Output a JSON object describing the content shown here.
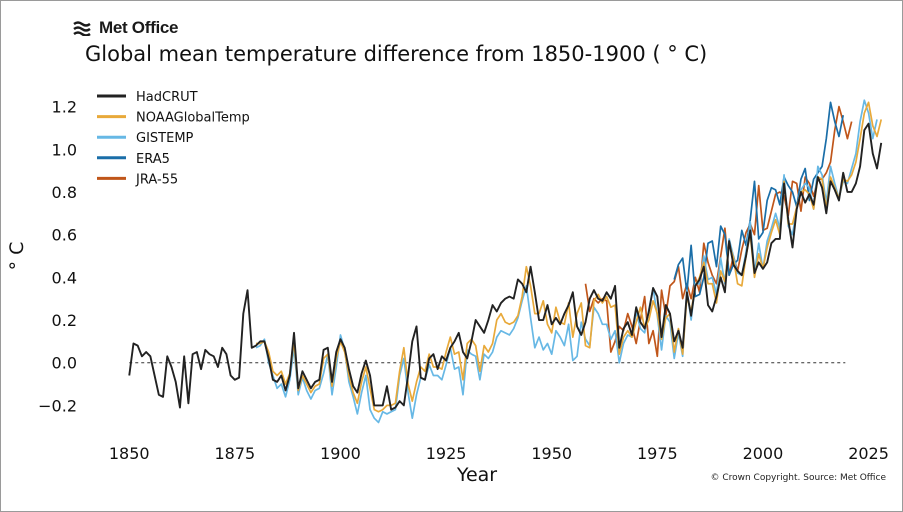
{
  "logo": {
    "text": "Met Office",
    "icon": "met-office-wave-icon"
  },
  "credit": "© Crown Copyright. Source: Met Office",
  "chart_data": {
    "type": "line",
    "title": "Global mean temperature difference from 1850-1900 ( ° C)",
    "xlabel": "Year",
    "ylabel": "° C",
    "xlim": [
      1840,
      2027
    ],
    "ylim": [
      -0.32,
      1.32
    ],
    "xticks": [
      1850,
      1875,
      1900,
      1925,
      1950,
      1975,
      2000,
      2025
    ],
    "xtick_labels": [
      "1850",
      "1875",
      "1900",
      "1925",
      "1950",
      "1975",
      "2000",
      "2025"
    ],
    "yticks": [
      -0.2,
      0.0,
      0.2,
      0.4,
      0.6,
      0.8,
      1.0,
      1.2
    ],
    "ytick_labels": [
      "−0.2",
      "0.0",
      "0.2",
      "0.4",
      "0.6",
      "0.8",
      "1.0",
      "1.2"
    ],
    "reference_line": {
      "y": 0.0,
      "style": "dashed",
      "color": "#333333"
    },
    "grid": false,
    "legend_position": "top-left",
    "series": [
      {
        "name": "HadCRUT",
        "color": "#222222",
        "start_year": 1850,
        "values": [
          -0.06,
          0.09,
          0.08,
          0.03,
          0.05,
          0.03,
          -0.06,
          -0.15,
          -0.16,
          0.03,
          -0.02,
          -0.09,
          -0.21,
          0.03,
          -0.19,
          0.04,
          0.05,
          -0.03,
          0.06,
          0.04,
          0.03,
          -0.02,
          0.07,
          0.04,
          -0.06,
          -0.08,
          -0.07,
          0.23,
          0.34,
          0.07,
          0.08,
          0.1,
          0.1,
          0.02,
          -0.08,
          -0.09,
          -0.06,
          -0.13,
          -0.06,
          0.14,
          -0.12,
          -0.04,
          -0.08,
          -0.12,
          -0.09,
          -0.08,
          0.06,
          0.07,
          -0.09,
          0.05,
          0.11,
          0.07,
          -0.03,
          -0.11,
          -0.14,
          -0.05,
          0.01,
          -0.06,
          -0.2,
          -0.2,
          -0.2,
          -0.11,
          -0.22,
          -0.21,
          -0.18,
          -0.2,
          -0.06,
          0.1,
          0.17,
          -0.07,
          -0.08,
          0.02,
          0.04,
          -0.03,
          0.03,
          0.01,
          0.07,
          0.1,
          0.14,
          0.05,
          0.02,
          0.1,
          0.2,
          0.17,
          0.14,
          0.2,
          0.27,
          0.24,
          0.28,
          0.3,
          0.31,
          0.3,
          0.39,
          0.37,
          0.33,
          0.45,
          0.33,
          0.2,
          0.2,
          0.27,
          0.18,
          0.21,
          0.18,
          0.23,
          0.27,
          0.33,
          0.17,
          0.13,
          0.19,
          0.3,
          0.34,
          0.3,
          0.29,
          0.33,
          0.3,
          0.36,
          0.07,
          0.16,
          0.19,
          0.13,
          0.26,
          0.19,
          0.16,
          0.24,
          0.35,
          0.31,
          0.12,
          0.27,
          0.23,
          0.1,
          0.15,
          0.07,
          0.33,
          0.22,
          0.36,
          0.39,
          0.45,
          0.27,
          0.24,
          0.31,
          0.4,
          0.33,
          0.57,
          0.46,
          0.43,
          0.41,
          0.5,
          0.62,
          0.42,
          0.47,
          0.44,
          0.47,
          0.56,
          0.58,
          0.58,
          0.84,
          0.67,
          0.54,
          0.72,
          0.8,
          0.75,
          0.79,
          0.74,
          0.87,
          0.82,
          0.7,
          0.85,
          0.81,
          0.76,
          0.89,
          0.8,
          0.8,
          0.84,
          0.92,
          1.09,
          1.12,
          0.98,
          0.91,
          1.03
        ]
      },
      {
        "name": "NOAAGlobalTemp",
        "color": "#e8a93a",
        "start_year": 1880,
        "values": [
          0.09,
          0.09,
          0.1,
          0.05,
          -0.04,
          -0.06,
          -0.04,
          -0.1,
          -0.05,
          0.1,
          -0.13,
          -0.06,
          -0.1,
          -0.14,
          -0.11,
          -0.1,
          0.02,
          0.04,
          -0.11,
          0.02,
          0.1,
          0.05,
          -0.06,
          -0.14,
          -0.19,
          -0.09,
          -0.02,
          -0.12,
          -0.22,
          -0.23,
          -0.22,
          -0.2,
          -0.2,
          -0.19,
          -0.04,
          0.07,
          -0.1,
          -0.18,
          -0.09,
          -0.02,
          -0.04,
          0.04,
          -0.02,
          -0.02,
          -0.03,
          0.05,
          0.12,
          0.04,
          0.05,
          -0.08,
          0.09,
          0.11,
          0.08,
          -0.04,
          0.08,
          0.05,
          0.09,
          0.2,
          0.23,
          0.19,
          0.18,
          0.19,
          0.22,
          0.31,
          0.45,
          0.36,
          0.23,
          0.23,
          0.29,
          0.18,
          0.14,
          0.26,
          0.19,
          0.18,
          0.28,
          0.12,
          0.23,
          0.28,
          0.08,
          0.07,
          0.29,
          0.32,
          0.28,
          0.31,
          0.26,
          0.27,
          0.04,
          0.12,
          0.15,
          0.12,
          0.19,
          0.26,
          0.16,
          0.2,
          0.29,
          0.23,
          0.11,
          0.21,
          0.23,
          0.05,
          0.16,
          0.04,
          0.31,
          0.24,
          0.36,
          0.4,
          0.47,
          0.37,
          0.37,
          0.28,
          0.43,
          0.38,
          0.56,
          0.49,
          0.37,
          0.36,
          0.5,
          0.6,
          0.4,
          0.51,
          0.44,
          0.54,
          0.61,
          0.67,
          0.6,
          0.85,
          0.65,
          0.65,
          0.73,
          0.8,
          0.81,
          0.79,
          0.72,
          0.87,
          0.86,
          0.72,
          0.87,
          0.82,
          0.77,
          0.86,
          0.85,
          0.88,
          0.94,
          1.05,
          1.17,
          1.22,
          1.11,
          1.06,
          1.14
        ]
      },
      {
        "name": "GISTEMP",
        "color": "#67b8e5",
        "start_year": 1880,
        "values": [
          0.07,
          0.08,
          0.11,
          0.0,
          -0.06,
          -0.12,
          -0.1,
          -0.16,
          -0.08,
          0.07,
          -0.15,
          -0.07,
          -0.13,
          -0.17,
          -0.13,
          -0.12,
          -0.05,
          0.04,
          -0.15,
          -0.02,
          0.13,
          0.06,
          -0.09,
          -0.16,
          -0.24,
          -0.14,
          -0.06,
          -0.22,
          -0.26,
          -0.28,
          -0.23,
          -0.24,
          -0.23,
          -0.22,
          -0.06,
          0.02,
          -0.14,
          -0.26,
          -0.15,
          -0.07,
          -0.08,
          -0.01,
          -0.06,
          -0.06,
          -0.08,
          -0.01,
          0.07,
          -0.03,
          -0.02,
          -0.15,
          0.06,
          0.04,
          0.03,
          -0.08,
          0.04,
          0.02,
          0.05,
          0.12,
          0.15,
          0.14,
          0.13,
          0.16,
          0.21,
          0.29,
          0.36,
          0.21,
          0.07,
          0.12,
          0.06,
          0.09,
          0.04,
          0.15,
          0.12,
          0.08,
          0.18,
          0.01,
          0.03,
          0.19,
          0.11,
          0.08,
          0.26,
          0.23,
          0.18,
          0.18,
          0.11,
          0.15,
          0.0,
          0.09,
          0.13,
          0.12,
          0.24,
          0.16,
          0.14,
          0.25,
          0.35,
          0.22,
          0.06,
          0.22,
          0.19,
          0.02,
          0.14,
          0.03,
          0.34,
          0.2,
          0.37,
          0.37,
          0.5,
          0.39,
          0.4,
          0.32,
          0.49,
          0.37,
          0.58,
          0.5,
          0.42,
          0.41,
          0.52,
          0.66,
          0.42,
          0.56,
          0.44,
          0.57,
          0.63,
          0.7,
          0.63,
          0.88,
          0.64,
          0.6,
          0.72,
          0.81,
          0.84,
          0.82,
          0.72,
          0.92,
          0.88,
          0.75,
          0.92,
          0.84,
          0.77,
          0.85,
          0.84,
          0.91,
          0.98,
          1.13,
          1.23,
          1.17,
          1.05,
          1.14
        ]
      },
      {
        "name": "ERA5",
        "color": "#1a6ea8",
        "start_year": 1979,
        "values": [
          0.39,
          0.46,
          0.49,
          0.33,
          0.55,
          0.31,
          0.32,
          0.4,
          0.56,
          0.57,
          0.45,
          0.64,
          0.6,
          0.41,
          0.46,
          0.48,
          0.62,
          0.55,
          0.67,
          0.85,
          0.58,
          0.61,
          0.76,
          0.82,
          0.81,
          0.74,
          0.87,
          0.83,
          0.8,
          0.73,
          0.86,
          0.91,
          0.76,
          0.86,
          0.89,
          0.92,
          1.05,
          1.22,
          1.13,
          1.06,
          1.16
        ]
      },
      {
        "name": "JRA-55",
        "color": "#c0561a",
        "start_year": 1958,
        "values": [
          0.37,
          0.24,
          0.3,
          0.28,
          0.3,
          0.29,
          0.05,
          0.1,
          0.17,
          0.15,
          0.23,
          0.17,
          0.09,
          0.2,
          0.31,
          0.09,
          0.15,
          0.03,
          0.34,
          0.22,
          0.36,
          0.38,
          0.45,
          0.3,
          0.37,
          0.3,
          0.4,
          0.33,
          0.56,
          0.47,
          0.41,
          0.37,
          0.5,
          0.63,
          0.41,
          0.5,
          0.43,
          0.53,
          0.61,
          0.65,
          0.6,
          0.83,
          0.62,
          0.63,
          0.71,
          0.79,
          0.8,
          0.78,
          0.69,
          0.85,
          0.84,
          0.71,
          0.87,
          0.84,
          0.78,
          0.86,
          0.86,
          0.89,
          0.94,
          1.09,
          1.2,
          1.13,
          1.05,
          1.13
        ]
      }
    ]
  }
}
